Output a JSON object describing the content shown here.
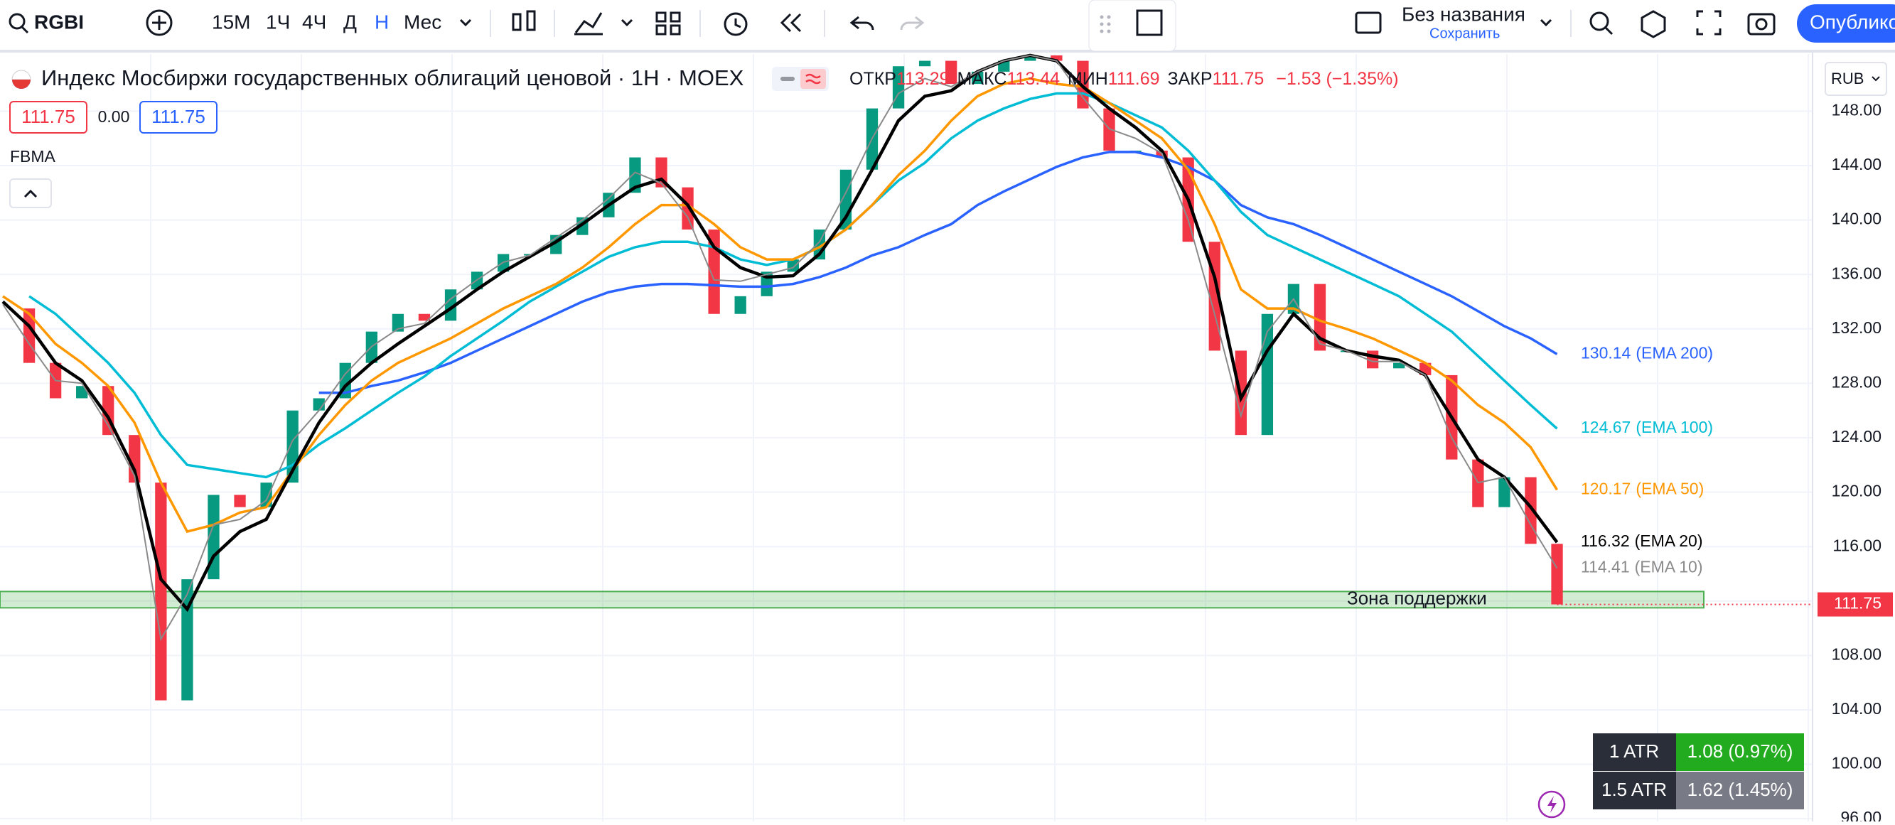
{
  "toolbar": {
    "symbol": "RGBI",
    "intervals": [
      "15M",
      "1Ч",
      "4Ч",
      "Д",
      "Н",
      "Мес"
    ],
    "layout_name": "Без названия",
    "save": "Сохранить",
    "publish": "Опубликовать"
  },
  "legend": {
    "title": "Индекс Мосбиржи государственных облигаций ценовой · 1H · MOEX",
    "ohlc": [
      {
        "label": "ОТКР",
        "value": 113.29
      },
      {
        "label": "МАКС",
        "value": 113.44
      },
      {
        "label": "МИН",
        "value": 111.69
      },
      {
        "label": "ЗАКР",
        "value": 111.75
      }
    ],
    "change": "−1.53 (−1.35%)",
    "bid": "111.75",
    "spread": "0.00",
    "ask": "111.75",
    "indicator": "FBMA",
    "currency": "RUB"
  },
  "atr_table": {
    "rows": [
      [
        "1 ATR",
        "1.08 (0.97%)"
      ],
      [
        "1.5 ATR",
        "1.62 (1.45%)"
      ]
    ]
  },
  "chart_data": {
    "type": "line",
    "grid": true,
    "ylim": [
      95.8,
      152.2
    ],
    "yticks": [
      {
        "value": 96,
        "label": "96.00"
      },
      {
        "value": 100,
        "label": "100.00"
      },
      {
        "value": 104,
        "label": "104.00"
      },
      {
        "value": 108,
        "label": "108.00"
      },
      {
        "value": 112,
        "label": "112.00"
      },
      {
        "value": 116,
        "label": "116.00"
      },
      {
        "value": 120,
        "label": "120.00"
      },
      {
        "value": 124,
        "label": "124.00"
      },
      {
        "value": 128,
        "label": "128.00"
      },
      {
        "value": 132,
        "label": "132.00"
      },
      {
        "value": 136,
        "label": "136.00"
      },
      {
        "value": 140,
        "label": "140.00"
      },
      {
        "value": 144,
        "label": "144.00"
      },
      {
        "value": 148,
        "label": "148.00"
      }
    ],
    "price": {
      "color_up": "#089981",
      "color_down": "#f23645",
      "values": [
        133.5,
        129.5,
        126.9,
        127.8,
        124.2,
        120.7,
        104.7,
        113.6,
        119.8,
        118.9,
        120.7,
        126.0,
        126.9,
        129.5,
        131.8,
        133.1,
        132.6,
        134.9,
        136.2,
        137.5,
        137.5,
        138.9,
        140.2,
        142.0,
        144.6,
        142.4,
        139.3,
        133.1,
        134.4,
        136.2,
        137.1,
        139.3,
        143.7,
        148.2,
        151.3,
        151.7,
        150.0,
        150.9,
        151.7,
        152.1,
        151.7,
        148.2,
        145.1,
        145.1,
        144.6,
        138.4,
        130.4,
        124.2,
        133.1,
        135.3,
        130.4,
        130.4,
        129.1,
        129.5,
        128.6,
        122.4,
        118.9,
        121.1,
        116.2,
        111.75
      ]
    },
    "series": [
      {
        "name": "(EMA 200)",
        "color": "#2962ff",
        "width": 3.5,
        "values": [
          null,
          null,
          null,
          null,
          null,
          null,
          null,
          null,
          null,
          null,
          null,
          null,
          127.3,
          127.3,
          127.8,
          128.2,
          128.8,
          129.5,
          130.4,
          131.3,
          132.2,
          133.1,
          134.0,
          134.7,
          135.1,
          135.3,
          135.3,
          135.2,
          135.1,
          135.1,
          135.3,
          135.8,
          136.5,
          137.4,
          138.0,
          138.9,
          139.7,
          141.1,
          142.1,
          143.0,
          143.9,
          144.6,
          145.0,
          145.0,
          144.6,
          143.9,
          142.9,
          141.1,
          140.2,
          139.7,
          138.9,
          138.0,
          137.1,
          136.2,
          135.3,
          134.4,
          133.3,
          132.2,
          131.3,
          130.14
        ]
      },
      {
        "name": "(EMA 100)",
        "color": "#00bcd4",
        "width": 3.5,
        "values": [
          null,
          134.4,
          133.1,
          131.3,
          129.5,
          127.3,
          124.2,
          122.0,
          121.7,
          121.4,
          121.1,
          122.0,
          123.5,
          124.7,
          126.0,
          127.3,
          128.5,
          130.0,
          131.3,
          132.6,
          134.0,
          135.1,
          136.2,
          137.3,
          138.0,
          138.4,
          138.4,
          138.0,
          137.1,
          136.7,
          137.1,
          138.0,
          139.3,
          141.1,
          142.9,
          144.2,
          146.0,
          147.3,
          148.2,
          148.9,
          149.3,
          149.3,
          148.6,
          147.7,
          146.8,
          145.1,
          142.9,
          140.6,
          138.9,
          138.0,
          137.1,
          136.2,
          135.3,
          134.4,
          133.1,
          131.8,
          130.0,
          128.2,
          126.4,
          124.67
        ]
      },
      {
        "name": "(EMA 50)",
        "color": "#ff9800",
        "width": 3.5,
        "values": [
          134.4,
          133.1,
          130.9,
          129.5,
          127.8,
          125.1,
          120.7,
          117.1,
          117.6,
          118.5,
          118.9,
          121.6,
          124.2,
          126.4,
          128.2,
          129.5,
          130.4,
          131.3,
          132.4,
          133.5,
          134.4,
          135.3,
          136.5,
          138.0,
          139.7,
          141.1,
          141.1,
          139.7,
          138.0,
          137.1,
          137.1,
          138.0,
          139.3,
          141.1,
          143.3,
          145.1,
          147.3,
          149.1,
          150.0,
          150.4,
          150.0,
          149.8,
          148.6,
          147.3,
          146.0,
          143.7,
          139.7,
          134.9,
          133.5,
          133.5,
          132.6,
          132.0,
          131.3,
          130.4,
          129.5,
          128.2,
          126.4,
          125.1,
          123.3,
          120.17
        ]
      },
      {
        "name": "(EMA 20)",
        "color": "#000000",
        "width": 4.5,
        "values": [
          134.0,
          132.2,
          129.5,
          128.2,
          125.5,
          121.6,
          113.6,
          111.4,
          115.3,
          117.1,
          118.0,
          121.6,
          125.1,
          127.8,
          129.5,
          130.9,
          132.2,
          133.5,
          134.9,
          136.2,
          137.3,
          138.4,
          139.7,
          141.1,
          142.4,
          143.0,
          141.1,
          138.0,
          136.5,
          135.8,
          135.9,
          137.5,
          140.2,
          143.7,
          147.3,
          149.1,
          149.5,
          150.9,
          151.7,
          152.1,
          151.7,
          149.8,
          148.2,
          146.8,
          145.1,
          141.5,
          135.8,
          126.9,
          130.4,
          133.1,
          131.3,
          130.4,
          130.0,
          129.7,
          128.6,
          125.5,
          122.4,
          121.1,
          118.9,
          116.32
        ]
      },
      {
        "name": "(EMA 10)",
        "color": "#8a8a8a",
        "width": 2,
        "values": [
          133.8,
          130.9,
          128.2,
          128.0,
          124.9,
          121.2,
          109.2,
          112.5,
          117.6,
          118.0,
          119.4,
          123.8,
          126.0,
          128.7,
          130.7,
          132.0,
          132.4,
          134.2,
          135.6,
          136.9,
          137.4,
          138.7,
          140.0,
          141.6,
          143.5,
          142.7,
          140.2,
          135.6,
          135.5,
          136.0,
          136.5,
          138.4,
          142.0,
          146.0,
          149.3,
          150.4,
          149.8,
          150.9,
          151.7,
          152.1,
          151.7,
          149.0,
          146.7,
          146.0,
          144.9,
          140.0,
          133.1,
          125.6,
          131.8,
          134.2,
          130.9,
          130.4,
          129.6,
          129.6,
          128.6,
          124.0,
          120.7,
          121.1,
          117.6,
          114.41
        ]
      }
    ],
    "zone": {
      "label": "Зона поддержки",
      "low": 111.5,
      "high": 112.7,
      "color": "#4caf50"
    }
  }
}
